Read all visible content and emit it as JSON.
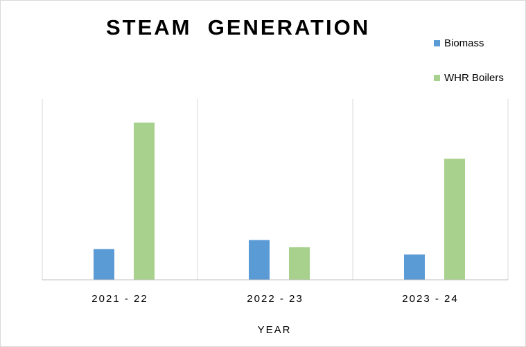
{
  "chart_data": {
    "type": "bar",
    "title": "STEAM  GENERATION",
    "xlabel": "YEAR",
    "ylabel": "",
    "categories": [
      "2021-22",
      "2022-23",
      "2023-24"
    ],
    "tick_labels": [
      "2021 - 22",
      "2022 - 23",
      "2023 - 24"
    ],
    "series": [
      {
        "name": "Biomass",
        "values": [
          17,
          22,
          14
        ],
        "color": "#5b9bd5"
      },
      {
        "name": "WHR Boilers",
        "values": [
          87,
          18,
          67
        ],
        "color": "#a9d18e"
      }
    ],
    "ylim": [
      0,
      100
    ],
    "grid": "vertical category dividers",
    "legend": "top-right"
  }
}
